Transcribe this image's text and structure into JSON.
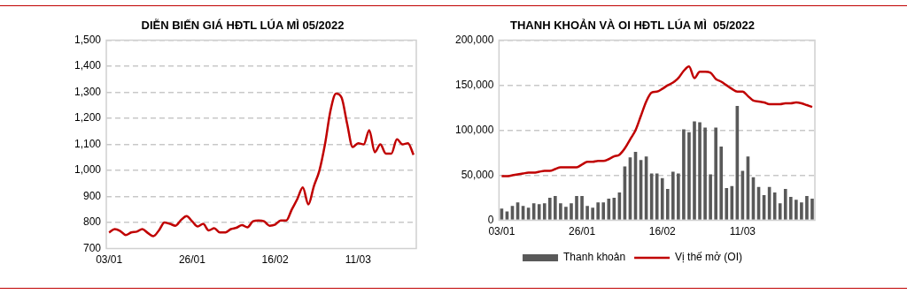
{
  "chart_data": [
    {
      "type": "line",
      "title": "DIỄN BIẾN GIÁ HĐTL LÚA MÌ 05/2022",
      "categories": [
        "03/01",
        null,
        null,
        null,
        null,
        null,
        null,
        null,
        null,
        null,
        null,
        null,
        null,
        null,
        null,
        "26/01",
        null,
        null,
        null,
        null,
        null,
        null,
        null,
        null,
        null,
        null,
        null,
        null,
        null,
        null,
        "16/02",
        null,
        null,
        null,
        null,
        null,
        null,
        null,
        null,
        null,
        null,
        null,
        null,
        null,
        null,
        "11/03",
        null,
        null,
        null,
        null,
        null,
        null,
        null,
        null,
        null,
        null
      ],
      "values": [
        762,
        775,
        768,
        752,
        762,
        765,
        775,
        760,
        748,
        770,
        800,
        795,
        788,
        810,
        825,
        805,
        785,
        795,
        770,
        778,
        762,
        762,
        775,
        780,
        790,
        782,
        805,
        808,
        805,
        788,
        792,
        808,
        808,
        850,
        890,
        935,
        870,
        940,
        1000,
        1100,
        1230,
        1295,
        1280,
        1180,
        1090,
        1105,
        1100,
        1155,
        1070,
        1100,
        1065,
        1065,
        1120,
        1100,
        1105,
        1060
      ],
      "color": "#c00000",
      "ylim": [
        700,
        1500
      ],
      "yticks": [
        700,
        800,
        900,
        {
          "value": 1000,
          "label": "1,000"
        },
        {
          "value": 1100,
          "label": "1,100"
        },
        {
          "value": 1200,
          "label": "1,200"
        },
        {
          "value": 1300,
          "label": "1,300"
        },
        {
          "value": 1400,
          "label": "1,400"
        },
        {
          "value": 1500,
          "label": "1,500"
        }
      ],
      "grid": "y"
    },
    {
      "type": "bar",
      "title": "THANH KHOẢN VÀ OI HĐTL LÚA MÌ  05/2022",
      "categories": [
        "03/01",
        null,
        null,
        null,
        null,
        null,
        null,
        null,
        null,
        null,
        null,
        null,
        null,
        null,
        null,
        "26/01",
        null,
        null,
        null,
        null,
        null,
        null,
        null,
        null,
        null,
        null,
        null,
        null,
        null,
        null,
        "16/02",
        null,
        null,
        null,
        null,
        null,
        null,
        null,
        null,
        null,
        null,
        null,
        null,
        null,
        null,
        "11/03",
        null,
        null,
        null,
        null,
        null,
        null,
        null,
        null,
        null,
        null,
        null,
        null,
        null
      ],
      "series": [
        {
          "name": "Thanh khoản",
          "type": "bar",
          "color": "#595959",
          "values": [
            13000,
            10000,
            16000,
            20000,
            16000,
            14000,
            19000,
            18000,
            19000,
            25000,
            27000,
            19000,
            15000,
            19000,
            27000,
            27000,
            16000,
            14000,
            20000,
            20000,
            24000,
            25000,
            31000,
            60000,
            70000,
            76000,
            67000,
            71000,
            52000,
            52000,
            47000,
            35000,
            54000,
            52000,
            101000,
            98000,
            110000,
            109000,
            103000,
            51000,
            103000,
            82000,
            36000,
            38000,
            127000,
            55000,
            71000,
            48000,
            37000,
            28000,
            37000,
            31000,
            19000,
            35000,
            26000,
            23000,
            20000,
            27000,
            24000
          ]
        },
        {
          "name": "Vị thế mở (OI)",
          "type": "line",
          "color": "#c00000",
          "values": [
            49000,
            49000,
            50000,
            51000,
            52000,
            53000,
            53000,
            54000,
            55000,
            55000,
            57000,
            59000,
            59000,
            59000,
            59000,
            62000,
            65000,
            65000,
            66000,
            66000,
            68000,
            71000,
            73000,
            80000,
            90000,
            100000,
            116000,
            132000,
            142000,
            143000,
            146000,
            150000,
            153000,
            158000,
            166000,
            171000,
            158000,
            165000,
            165000,
            164000,
            157000,
            154000,
            150000,
            146000,
            143000,
            143000,
            138000,
            133000,
            132000,
            131000,
            129000,
            129000,
            129000,
            130000,
            130000,
            131000,
            130000,
            128000,
            126000
          ]
        }
      ],
      "ylim": [
        0,
        200000
      ],
      "yticks": [
        0,
        {
          "value": 50000,
          "label": "50,000"
        },
        {
          "value": 100000,
          "label": "100,000"
        },
        {
          "value": 150000,
          "label": "150,000"
        },
        {
          "value": 200000,
          "label": "200,000"
        }
      ],
      "grid": "y",
      "legend": "bottom"
    }
  ]
}
